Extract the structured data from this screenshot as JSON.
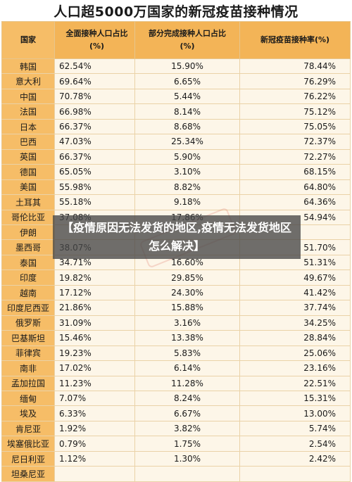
{
  "title": "人口超5000万国家的新冠疫苗接种情况",
  "table": {
    "headers": [
      "国家",
      "全面接种人口占比\n(%)",
      "部分完成接种人口占比\n(%)",
      "新冠疫苗接种率(%)"
    ],
    "rows": [
      [
        "韩国",
        "62.54%",
        "15.90%",
        "78.44%"
      ],
      [
        "意大利",
        "69.64%",
        "6.65%",
        "76.29%"
      ],
      [
        "中国",
        "70.78%",
        "5.44%",
        "76.22%"
      ],
      [
        "法国",
        "66.98%",
        "8.14%",
        "75.12%"
      ],
      [
        "日本",
        "66.37%",
        "8.68%",
        "75.05%"
      ],
      [
        "巴西",
        "47.03%",
        "25.34%",
        "72.37%"
      ],
      [
        "英国",
        "66.37%",
        "5.90%",
        "72.27%"
      ],
      [
        "德国",
        "65.05%",
        "3.10%",
        "68.15%"
      ],
      [
        "美国",
        "55.98%",
        "8.82%",
        "64.80%"
      ],
      [
        "土耳其",
        "55.18%",
        "9.18%",
        "64.36%"
      ],
      [
        "哥伦比亚",
        "37.08%",
        "17.86%",
        "54.94%"
      ],
      [
        "伊朗",
        "",
        "",
        ""
      ],
      [
        "墨西哥",
        "38.07%",
        "",
        "51.70%"
      ],
      [
        "泰国",
        "34.71%",
        "16.60%",
        "51.31%"
      ],
      [
        "印度",
        "19.82%",
        "29.85%",
        "49.67%"
      ],
      [
        "越南",
        "17.12%",
        "24.30%",
        "41.42%"
      ],
      [
        "印度尼西亚",
        "21.86%",
        "15.88%",
        "37.74%"
      ],
      [
        "俄罗斯",
        "31.09%",
        "3.16%",
        "34.25%"
      ],
      [
        "巴基斯坦",
        "15.46%",
        "13.38%",
        "28.84%"
      ],
      [
        "菲律宾",
        "19.23%",
        "5.83%",
        "25.06%"
      ],
      [
        "南非",
        "17.02%",
        "6.14%",
        "23.16%"
      ],
      [
        "孟加拉国",
        "11.23%",
        "11.28%",
        "22.51%"
      ],
      [
        "缅甸",
        "7.07%",
        "8.24%",
        "15.31%"
      ],
      [
        "埃及",
        "6.33%",
        "6.67%",
        "13.00%"
      ],
      [
        "肯尼亚",
        "1.92%",
        "3.82%",
        "5.74%"
      ],
      [
        "埃塞俄比亚",
        "0.79%",
        "1.75%",
        "2.54%"
      ],
      [
        "尼日利亚",
        "1.12%",
        "1.30%",
        "2.42%"
      ],
      [
        "坦桑尼亚",
        "",
        "",
        ""
      ]
    ]
  },
  "overlay": {
    "text": "【疫情原因无法发货的地区,疫情无法发货地区怎么解决】"
  }
}
